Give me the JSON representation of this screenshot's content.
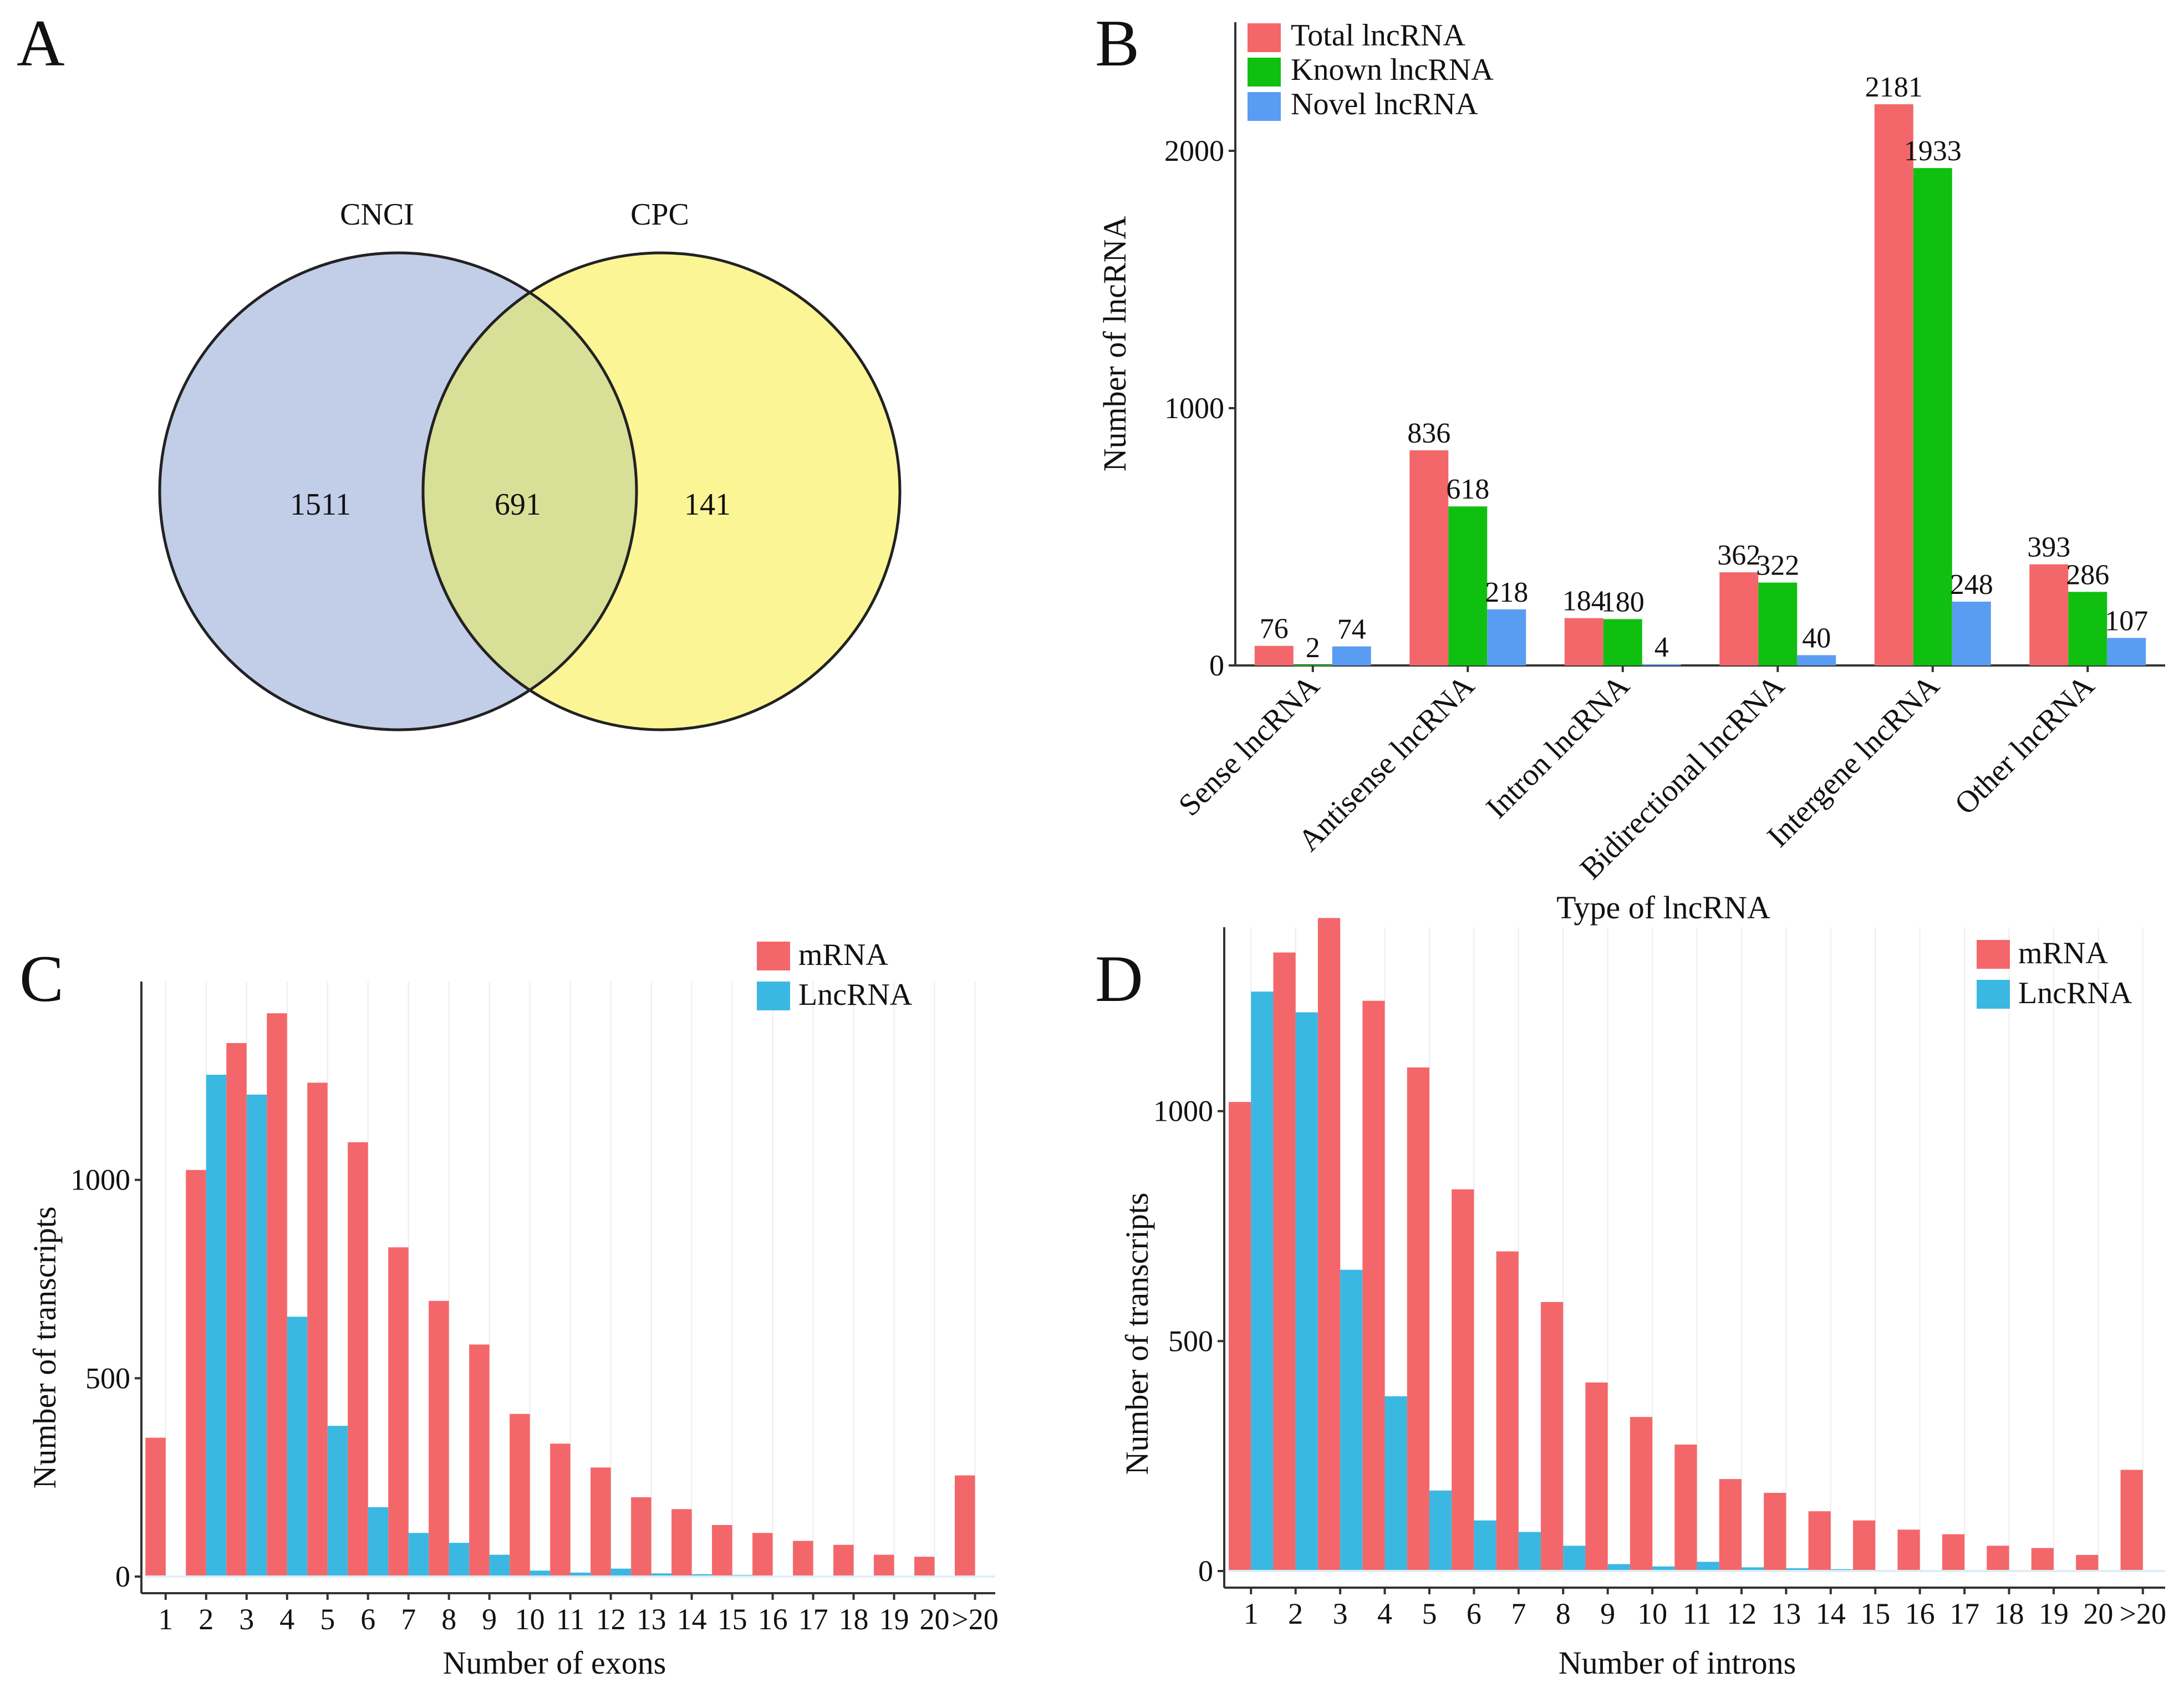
{
  "panels": {
    "A": {
      "letter": "A"
    },
    "B": {
      "letter": "B"
    },
    "C": {
      "letter": "C"
    },
    "D": {
      "letter": "D"
    }
  },
  "chart_data": [
    {
      "id": "A",
      "type": "venn",
      "sets": [
        {
          "name": "CNCI",
          "only": 1511,
          "color": "#c2cde8"
        },
        {
          "name": "CPC",
          "only": 141,
          "color": "#fbf596"
        }
      ],
      "intersection": 691,
      "intersection_color": "#d8df97"
    },
    {
      "id": "B",
      "type": "bar",
      "title": "",
      "xlabel": "Type of lncRNA",
      "ylabel": "Number of lncRNA",
      "ylim": [
        0,
        2500
      ],
      "yticks": [
        0,
        1000,
        2000
      ],
      "categories": [
        "Sense lncRNA",
        "Antisense lncRNA",
        "Intron lncRNA",
        "Bidirectional lncRNA",
        "Intergene lncRNA",
        "Other lncRNA"
      ],
      "series": [
        {
          "name": "Total lncRNA",
          "color": "#f3676a",
          "values": [
            76,
            836,
            184,
            362,
            2181,
            393
          ]
        },
        {
          "name": "Known lncRNA",
          "color": "#10c010",
          "values": [
            2,
            618,
            180,
            322,
            1933,
            286
          ]
        },
        {
          "name": "Novel lncRNA",
          "color": "#5a9cf2",
          "values": [
            74,
            218,
            4,
            40,
            248,
            107
          ]
        }
      ],
      "legend": "top-left"
    },
    {
      "id": "C",
      "type": "bar",
      "title": "",
      "xlabel": "Number of exons",
      "ylabel": "Number of transcripts",
      "ylim": [
        0,
        1500
      ],
      "yticks": [
        0,
        500,
        1000
      ],
      "categories": [
        "1",
        "2",
        "3",
        "4",
        "5",
        "6",
        "7",
        "8",
        "9",
        "10",
        "11",
        "12",
        "13",
        "14",
        "15",
        "16",
        "17",
        "18",
        "19",
        "20",
        ">20"
      ],
      "series": [
        {
          "name": "mRNA",
          "color": "#f3676a",
          "values": [
            350,
            1025,
            1345,
            1420,
            1245,
            1095,
            830,
            695,
            585,
            410,
            335,
            275,
            200,
            170,
            130,
            110,
            90,
            80,
            55,
            50,
            255
          ]
        },
        {
          "name": "LncRNA",
          "color": "#3ab8e2",
          "values": [
            0,
            1265,
            1215,
            655,
            380,
            175,
            110,
            85,
            55,
            15,
            10,
            20,
            8,
            6,
            4,
            0,
            0,
            0,
            0,
            0,
            0
          ]
        }
      ],
      "legend": "top-right"
    },
    {
      "id": "D",
      "type": "bar",
      "title": "",
      "xlabel": "Number of introns",
      "ylabel": "Number of transcripts",
      "ylim": [
        0,
        1400
      ],
      "yticks": [
        0,
        500,
        1000
      ],
      "categories": [
        "1",
        "2",
        "3",
        "4",
        "5",
        "6",
        "7",
        "8",
        "9",
        "10",
        "11",
        "12",
        "13",
        "14",
        "15",
        "16",
        "17",
        "18",
        "19",
        "20",
        ">20"
      ],
      "series": [
        {
          "name": "mRNA",
          "color": "#f3676a",
          "values": [
            1020,
            1345,
            1420,
            1240,
            1095,
            830,
            695,
            585,
            410,
            335,
            275,
            200,
            170,
            130,
            110,
            90,
            80,
            55,
            50,
            35,
            220
          ]
        },
        {
          "name": "LncRNA",
          "color": "#3ab8e2",
          "values": [
            1260,
            1215,
            655,
            380,
            175,
            110,
            85,
            55,
            15,
            10,
            20,
            8,
            6,
            4,
            0,
            0,
            0,
            0,
            0,
            0,
            0
          ]
        }
      ],
      "legend": "top-right"
    }
  ]
}
